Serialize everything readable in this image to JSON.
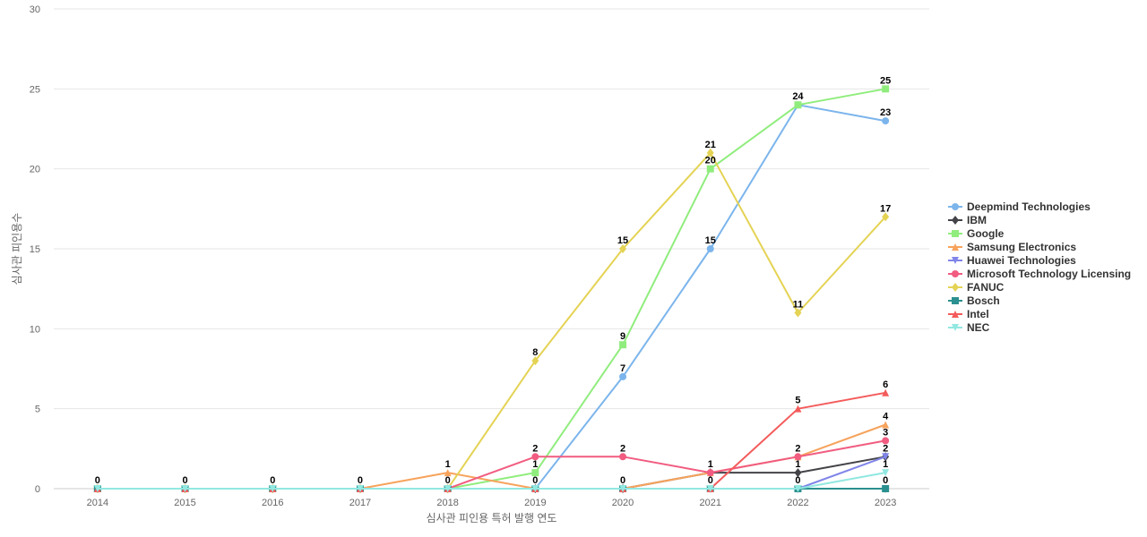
{
  "chart_data": {
    "type": "line",
    "xlabel": "심사관 피인용 특허 발행 연도",
    "ylabel": "심사관 피인용수",
    "ylim": [
      0,
      30
    ],
    "yticks": [
      0,
      5,
      10,
      15,
      20,
      25,
      30
    ],
    "grid": true,
    "legend_position": "right",
    "categories": [
      "2014",
      "2015",
      "2016",
      "2017",
      "2018",
      "2019",
      "2020",
      "2021",
      "2022",
      "2023"
    ],
    "series": [
      {
        "name": "Deepmind Technologies",
        "color": "#7cb5ec",
        "marker": "circle",
        "values": [
          0,
          0,
          0,
          0,
          0,
          0,
          7,
          15,
          24,
          23
        ]
      },
      {
        "name": "IBM",
        "color": "#434348",
        "marker": "diamond",
        "values": [
          0,
          0,
          0,
          0,
          0,
          0,
          0,
          1,
          1,
          2
        ]
      },
      {
        "name": "Google",
        "color": "#90ed7d",
        "marker": "square",
        "values": [
          0,
          0,
          0,
          0,
          0,
          1,
          9,
          20,
          24,
          25
        ]
      },
      {
        "name": "Samsung Electronics",
        "color": "#f7a35c",
        "marker": "triangle",
        "values": [
          0,
          0,
          0,
          0,
          1,
          0,
          0,
          1,
          2,
          4
        ]
      },
      {
        "name": "Huawei Technologies",
        "color": "#8085e9",
        "marker": "triangle-down",
        "values": [
          0,
          0,
          0,
          0,
          0,
          0,
          0,
          0,
          0,
          2
        ]
      },
      {
        "name": "Microsoft Technology Licensing",
        "color": "#f15c80",
        "marker": "circle",
        "values": [
          0,
          0,
          0,
          0,
          0,
          2,
          2,
          1,
          2,
          3
        ]
      },
      {
        "name": "FANUC",
        "color": "#e4d354",
        "marker": "diamond",
        "values": [
          0,
          0,
          0,
          0,
          0,
          8,
          15,
          21,
          11,
          17
        ]
      },
      {
        "name": "Bosch",
        "color": "#2b908f",
        "marker": "square",
        "values": [
          0,
          0,
          0,
          0,
          0,
          0,
          0,
          0,
          0,
          0
        ]
      },
      {
        "name": "Intel",
        "color": "#f45b5b",
        "marker": "triangle",
        "values": [
          0,
          0,
          0,
          0,
          0,
          0,
          0,
          0,
          5,
          6
        ]
      },
      {
        "name": "NEC",
        "color": "#91e8e1",
        "marker": "triangle-down",
        "values": [
          0,
          0,
          0,
          0,
          0,
          0,
          0,
          0,
          0,
          1
        ]
      }
    ],
    "data_labels": [
      {
        "series": "Deepmind Technologies",
        "x": "2020",
        "y": 7,
        "text": "7"
      },
      {
        "series": "Deepmind Technologies",
        "x": "2021",
        "y": 15,
        "text": "15"
      },
      {
        "series": "Deepmind Technologies",
        "x": "2022",
        "y": 24,
        "text": "24"
      },
      {
        "series": "Deepmind Technologies",
        "x": "2023",
        "y": 23,
        "text": "23"
      },
      {
        "series": "Google",
        "x": "2019",
        "y": 1,
        "text": "1"
      },
      {
        "series": "Google",
        "x": "2020",
        "y": 9,
        "text": "9"
      },
      {
        "series": "Google",
        "x": "2021",
        "y": 20,
        "text": "20"
      },
      {
        "series": "Google",
        "x": "2023",
        "y": 25,
        "text": "25"
      },
      {
        "series": "FANUC",
        "x": "2019",
        "y": 8,
        "text": "8"
      },
      {
        "series": "FANUC",
        "x": "2020",
        "y": 15,
        "text": "15"
      },
      {
        "series": "FANUC",
        "x": "2021",
        "y": 21,
        "text": "21"
      },
      {
        "series": "FANUC",
        "x": "2022",
        "y": 11,
        "text": "11"
      },
      {
        "series": "FANUC",
        "x": "2023",
        "y": 17,
        "text": "17"
      },
      {
        "series": "Microsoft Technology Licensing",
        "x": "2019",
        "y": 2,
        "text": "2"
      },
      {
        "series": "Microsoft Technology Licensing",
        "x": "2020",
        "y": 2,
        "text": "2"
      },
      {
        "series": "Microsoft Technology Licensing",
        "x": "2022",
        "y": 2,
        "text": "2"
      },
      {
        "series": "Microsoft Technology Licensing",
        "x": "2023",
        "y": 3,
        "text": "3"
      },
      {
        "series": "Samsung Electronics",
        "x": "2018",
        "y": 1,
        "text": "1"
      },
      {
        "series": "Samsung Electronics",
        "x": "2023",
        "y": 4,
        "text": "4"
      },
      {
        "series": "IBM",
        "x": "2021",
        "y": 1,
        "text": "1"
      },
      {
        "series": "IBM",
        "x": "2022",
        "y": 1,
        "text": "1"
      },
      {
        "series": "Huawei Technologies",
        "x": "2023",
        "y": 2,
        "text": "2"
      },
      {
        "series": "Intel",
        "x": "2022",
        "y": 5,
        "text": "5"
      },
      {
        "series": "Intel",
        "x": "2023",
        "y": 6,
        "text": "6"
      },
      {
        "series": "NEC",
        "x": "2023",
        "y": 1,
        "text": "1"
      },
      {
        "series": "Bosch",
        "x": "2014",
        "y": 0,
        "text": "0"
      },
      {
        "series": "Bosch",
        "x": "2015",
        "y": 0,
        "text": "0"
      },
      {
        "series": "Bosch",
        "x": "2016",
        "y": 0,
        "text": "0"
      },
      {
        "series": "Bosch",
        "x": "2017",
        "y": 0,
        "text": "0"
      },
      {
        "series": "Bosch",
        "x": "2018",
        "y": 0,
        "text": "0"
      },
      {
        "series": "Bosch",
        "x": "2019",
        "y": 0,
        "text": "0"
      },
      {
        "series": "Bosch",
        "x": "2020",
        "y": 0,
        "text": "0"
      },
      {
        "series": "Bosch",
        "x": "2021",
        "y": 0,
        "text": "0"
      },
      {
        "series": "Bosch",
        "x": "2022",
        "y": 0,
        "text": "0"
      },
      {
        "series": "Bosch",
        "x": "2023",
        "y": 0,
        "text": "0"
      }
    ]
  }
}
